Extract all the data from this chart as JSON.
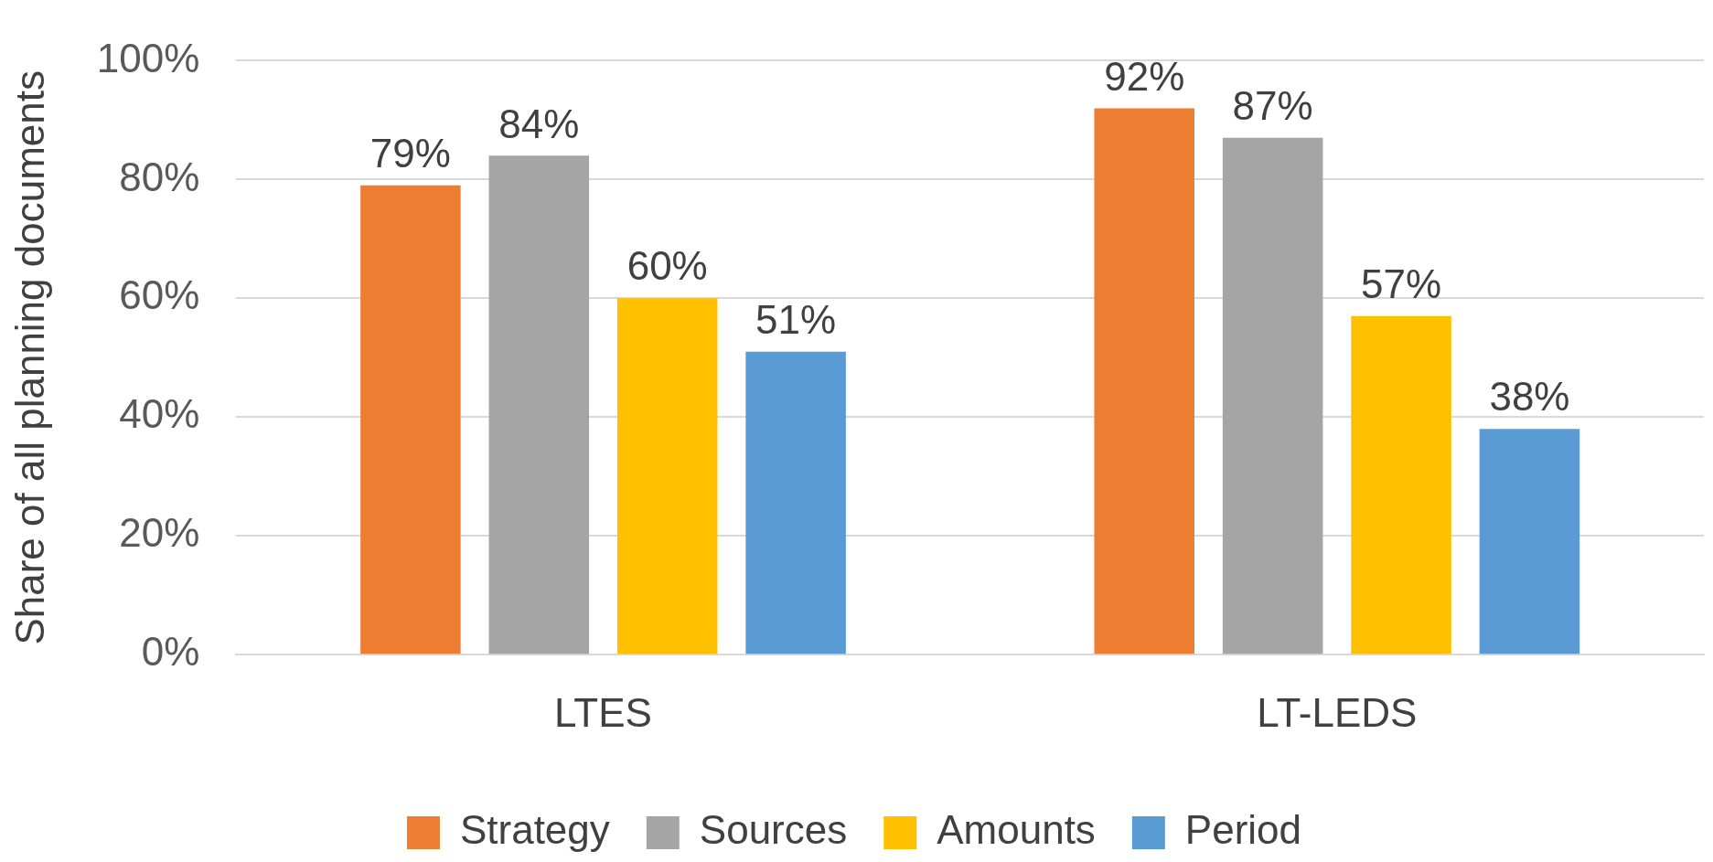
{
  "chart_data": {
    "type": "bar",
    "ylabel": "Share of all planning documents",
    "categories": [
      "LTES",
      "LT-LEDS"
    ],
    "series": [
      {
        "name": "Strategy",
        "color": "#ed7d31",
        "values": [
          79,
          92
        ],
        "value_labels": [
          "79%",
          "92%"
        ]
      },
      {
        "name": "Sources",
        "color": "#a5a5a5",
        "values": [
          84,
          87
        ],
        "value_labels": [
          "84%",
          "87%"
        ]
      },
      {
        "name": "Amounts",
        "color": "#ffc000",
        "values": [
          60,
          57
        ],
        "value_labels": [
          "60%",
          "57%"
        ]
      },
      {
        "name": "Period",
        "color": "#5b9bd5",
        "values": [
          51,
          38
        ],
        "value_labels": [
          "51%",
          "38%"
        ]
      }
    ],
    "ylim": [
      0,
      100
    ],
    "yticks": [
      {
        "value": 0,
        "label": "0%"
      },
      {
        "value": 20,
        "label": "20%"
      },
      {
        "value": 40,
        "label": "40%"
      },
      {
        "value": 60,
        "label": "60%"
      },
      {
        "value": 80,
        "label": "80%"
      },
      {
        "value": 100,
        "label": "100%"
      }
    ],
    "grid": "y",
    "legend": "bottom"
  }
}
